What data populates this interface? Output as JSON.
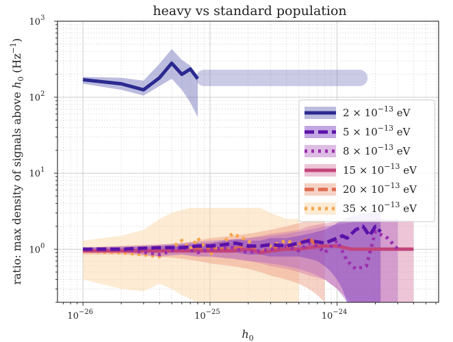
{
  "chart_data": {
    "type": "line",
    "title": "heavy vs standard population",
    "xlabel": "h",
    "xlabel_sub": "0",
    "ylabel_parts": [
      "ratio: max density of signals above ",
      "h",
      "0",
      " (Hz",
      "−1",
      ")"
    ],
    "xscale": "log",
    "yscale": "log",
    "xlim": [
      6.3e-27,
      6.3e-24
    ],
    "ylim": [
      0.2,
      1000
    ],
    "xticks": [
      {
        "value": 1e-26,
        "base": "10",
        "exp": "−26"
      },
      {
        "value": 1e-25,
        "base": "10",
        "exp": "−25"
      },
      {
        "value": 1e-24,
        "base": "10",
        "exp": "−24"
      }
    ],
    "yticks": [
      {
        "value": 1,
        "base": "10",
        "exp": "0"
      },
      {
        "value": 10,
        "base": "10",
        "exp": "1"
      },
      {
        "value": 100,
        "base": "10",
        "exp": "2"
      },
      {
        "value": 1000,
        "base": "10",
        "exp": "3"
      }
    ],
    "grid": true,
    "legend_position": "center-right",
    "series": [
      {
        "name": "2 × 10^-13 eV",
        "name_parts": [
          "2 × 10",
          "−13",
          " eV"
        ],
        "color": "#2b2a90",
        "band_color": "#6a6ab8",
        "dash": "solid",
        "x": [
          1e-26,
          2e-26,
          3e-26,
          4e-26,
          5e-26,
          6e-26,
          7e-26,
          8e-26
        ],
        "y": [
          170,
          150,
          125,
          180,
          280,
          200,
          235,
          175
        ],
        "low": [
          150,
          125,
          105,
          140,
          175,
          125,
          85,
          55
        ],
        "high": [
          185,
          180,
          165,
          275,
          430,
          310,
          260,
          180
        ],
        "flat_band": {
          "x": [
            9e-26,
            1.5e-24
          ],
          "low": 140,
          "high": 230
        }
      },
      {
        "name": "5 × 10^-13 eV",
        "name_parts": [
          "5 × 10",
          "−13",
          " eV"
        ],
        "color": "#5b12a8",
        "band_color": "#7a3bbf",
        "dash": "dashed",
        "x": [
          1e-26,
          2e-26,
          4e-26,
          6e-26,
          8e-26,
          1e-25,
          1.3e-25,
          1.6e-25,
          2e-25,
          2.5e-25,
          3e-25,
          4e-25,
          5e-25,
          6e-25,
          7e-25,
          8e-25,
          9e-25,
          1e-24,
          1.1e-24,
          1.2e-24,
          1.4e-24,
          1.6e-24,
          1.8e-24,
          2e-24,
          2.2e-24
        ],
        "y": [
          1.0,
          1.0,
          1.05,
          1.05,
          1.1,
          1.1,
          1.15,
          1.2,
          1.1,
          1.1,
          1.15,
          1.1,
          1.2,
          1.3,
          1.25,
          1.2,
          1.3,
          1.4,
          1.5,
          1.4,
          1.8,
          2.0,
          1.5,
          2.0,
          1.7
        ],
        "low": [
          0.95,
          0.95,
          0.95,
          0.95,
          0.95,
          0.9,
          0.9,
          0.9,
          0.85,
          0.85,
          0.8,
          0.8,
          0.8,
          0.75,
          0.7,
          0.6,
          0.5,
          0.4,
          0.3,
          0.2,
          0.2,
          0.2,
          0.2,
          0.2,
          0.2
        ],
        "high": [
          1.05,
          1.05,
          1.1,
          1.15,
          1.2,
          1.2,
          1.3,
          1.35,
          1.3,
          1.3,
          1.4,
          1.4,
          1.5,
          1.6,
          1.7,
          1.8,
          2.0,
          2.2,
          2.4,
          2.6,
          2.8,
          3.0,
          3.0,
          3.0,
          3.0
        ]
      },
      {
        "name": "8 × 10^-13 eV",
        "name_parts": [
          "8 × 10",
          "−13",
          " eV"
        ],
        "color": "#9b2fae",
        "band_color": "#b56cc4",
        "dash": "dotted",
        "x": [
          1e-26,
          2e-26,
          4e-26,
          6e-26,
          8e-26,
          1e-25,
          1.5e-25,
          2e-25,
          3e-25,
          4e-25,
          5e-25,
          6e-25,
          7e-25,
          8e-25,
          1e-24,
          1.2e-24,
          1.4e-24,
          1.7e-24,
          2e-24,
          2.5e-24,
          3e-24
        ],
        "y": [
          1.0,
          1.0,
          0.85,
          1.05,
          0.9,
          1.0,
          1.05,
          0.9,
          1.0,
          1.1,
          0.95,
          1.2,
          1.1,
          0.9,
          1.3,
          0.7,
          0.55,
          0.6,
          1.7,
          1.4,
          1.0
        ],
        "low": [
          0.95,
          0.9,
          0.8,
          0.85,
          0.8,
          0.8,
          0.75,
          0.7,
          0.65,
          0.6,
          0.55,
          0.5,
          0.45,
          0.4,
          0.3,
          0.2,
          0.2,
          0.2,
          0.2,
          0.2,
          0.2
        ],
        "high": [
          1.05,
          1.1,
          1.15,
          1.2,
          1.25,
          1.3,
          1.35,
          1.4,
          1.5,
          1.6,
          1.7,
          1.8,
          1.9,
          2.0,
          2.1,
          2.2,
          2.3,
          2.4,
          2.5,
          2.5,
          2.5
        ]
      },
      {
        "name": "15 × 10^-13 eV",
        "name_parts": [
          "15 × 10",
          "−13",
          " eV"
        ],
        "color": "#c2447a",
        "band_color": "#d77fa7",
        "dash": "solid",
        "x": [
          1e-26,
          2e-26,
          4e-26,
          6e-26,
          8e-26,
          1e-25,
          1.5e-25,
          2e-25,
          2.5e-25,
          3e-25,
          4e-25,
          5e-25,
          6e-25,
          8e-25,
          1e-24,
          1.3e-24,
          1.6e-24,
          2e-24,
          3e-24,
          4e-24
        ],
        "y": [
          0.95,
          0.95,
          0.95,
          0.95,
          0.95,
          0.95,
          0.95,
          1.0,
          0.9,
          0.95,
          1.0,
          1.0,
          1.05,
          1.1,
          1.1,
          1.0,
          1.0,
          1.0,
          1.0,
          1.0
        ],
        "low": [
          0.9,
          0.9,
          0.85,
          0.85,
          0.8,
          0.8,
          0.75,
          0.7,
          0.65,
          0.6,
          0.55,
          0.5,
          0.45,
          0.4,
          0.3,
          0.2,
          0.2,
          0.2,
          0.2,
          0.2
        ],
        "high": [
          1.0,
          1.0,
          1.05,
          1.1,
          1.15,
          1.2,
          1.3,
          1.4,
          1.5,
          1.6,
          1.7,
          1.8,
          2.0,
          2.2,
          2.3,
          2.4,
          2.4,
          2.4,
          2.4,
          2.4
        ]
      },
      {
        "name": "20 × 10^-13 eV",
        "name_parts": [
          "20 × 10",
          "−13",
          " eV"
        ],
        "color": "#e06b4f",
        "band_color": "#ec9a7f",
        "dash": "dashed",
        "x": [
          1e-26,
          2e-26,
          4e-26,
          6e-26,
          8e-26,
          1e-25,
          1.5e-25,
          2e-25,
          2.5e-25,
          3e-25,
          4e-25,
          5e-25,
          6e-25,
          7e-25,
          8e-25
        ],
        "y": [
          0.95,
          0.95,
          0.95,
          1.0,
          1.0,
          1.0,
          1.0,
          1.1,
          0.9,
          1.0,
          1.1,
          1.15,
          1.4,
          1.1,
          1.1
        ],
        "low": [
          0.85,
          0.85,
          0.8,
          0.75,
          0.7,
          0.65,
          0.6,
          0.55,
          0.5,
          0.45,
          0.4,
          0.35,
          0.3,
          0.25,
          0.2
        ],
        "high": [
          1.05,
          1.1,
          1.15,
          1.2,
          1.3,
          1.4,
          1.5,
          1.6,
          1.7,
          1.8,
          2.0,
          2.2,
          2.4,
          2.5,
          2.5
        ]
      },
      {
        "name": "35 × 10^-13 eV",
        "name_parts": [
          "35 × 10",
          "−13",
          " eV"
        ],
        "color": "#f5a54a",
        "band_color": "#fbd3a0",
        "dash": "dotted",
        "x": [
          1e-26,
          2e-26,
          3e-26,
          4e-26,
          5e-26,
          6e-26,
          7e-26,
          8e-26,
          1e-25,
          1.2e-25,
          1.5e-25,
          2e-25,
          2.5e-25,
          3e-25,
          4e-25,
          5e-25
        ],
        "y": [
          0.95,
          0.9,
          0.85,
          0.8,
          1.05,
          1.3,
          1.0,
          1.4,
          0.85,
          1.1,
          1.6,
          1.3,
          0.9,
          1.1,
          1.3,
          1.1
        ],
        "low": [
          0.4,
          0.3,
          0.28,
          0.35,
          0.3,
          0.25,
          0.22,
          0.2,
          0.2,
          0.2,
          0.2,
          0.2,
          0.2,
          0.2,
          0.2,
          0.2
        ],
        "high": [
          1.3,
          1.5,
          1.8,
          2.5,
          3.0,
          3.3,
          3.5,
          3.5,
          3.5,
          3.5,
          3.5,
          3.5,
          3.5,
          3.0,
          2.5,
          2.5
        ]
      }
    ]
  }
}
